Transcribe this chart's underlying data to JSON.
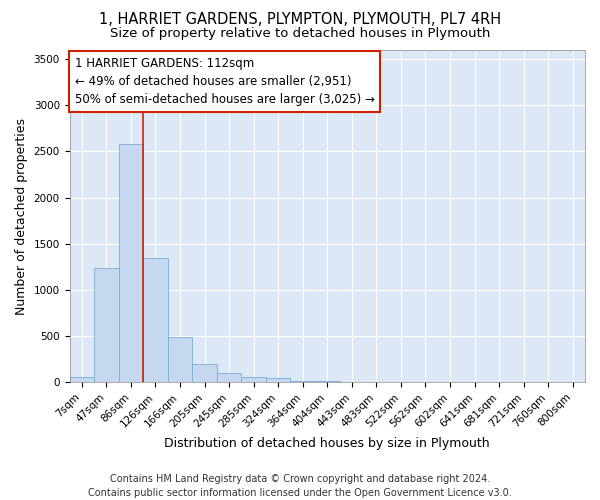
{
  "title_line1": "1, HARRIET GARDENS, PLYMPTON, PLYMOUTH, PL7 4RH",
  "title_line2": "Size of property relative to detached houses in Plymouth",
  "xlabel": "Distribution of detached houses by size in Plymouth",
  "ylabel": "Number of detached properties",
  "bar_labels": [
    "7sqm",
    "47sqm",
    "86sqm",
    "126sqm",
    "166sqm",
    "205sqm",
    "245sqm",
    "285sqm",
    "324sqm",
    "364sqm",
    "404sqm",
    "443sqm",
    "483sqm",
    "522sqm",
    "562sqm",
    "602sqm",
    "641sqm",
    "681sqm",
    "721sqm",
    "760sqm",
    "800sqm"
  ],
  "bar_values": [
    55,
    1240,
    2580,
    1340,
    490,
    195,
    100,
    55,
    40,
    15,
    10,
    5,
    5,
    0,
    0,
    0,
    0,
    0,
    0,
    0,
    0
  ],
  "bar_color": "#c5d8ef",
  "bar_edge_color": "#7aacd4",
  "vline_color": "#cc2200",
  "annotation_line1": "1 HARRIET GARDENS: 112sqm",
  "annotation_line2": "← 49% of detached houses are smaller (2,951)",
  "annotation_line3": "50% of semi-detached houses are larger (3,025) →",
  "annotation_box_color": "#ffffff",
  "annotation_box_edge": "#cc2200",
  "ylim": [
    0,
    3600
  ],
  "yticks": [
    0,
    500,
    1000,
    1500,
    2000,
    2500,
    3000,
    3500
  ],
  "bg_color": "#dce8f5",
  "fig_bg_color": "#ffffff",
  "grid_color": "#ffffff",
  "footer_line1": "Contains HM Land Registry data © Crown copyright and database right 2024.",
  "footer_line2": "Contains public sector information licensed under the Open Government Licence v3.0.",
  "title_fontsize": 10.5,
  "subtitle_fontsize": 9.5,
  "axis_label_fontsize": 9,
  "tick_fontsize": 7.5,
  "annotation_fontsize": 8.5,
  "footer_fontsize": 7
}
